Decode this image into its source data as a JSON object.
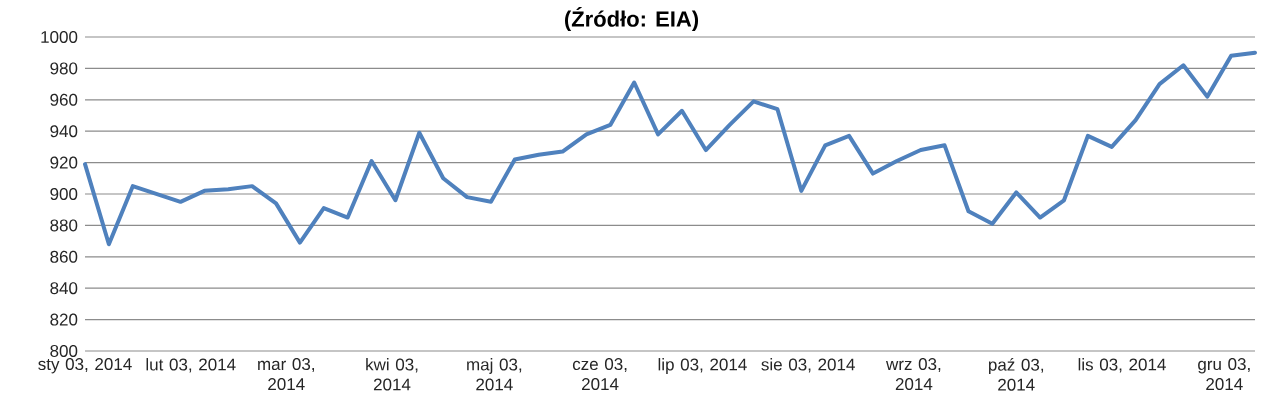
{
  "chart_data": {
    "type": "line",
    "title": "(Źródło: EIA)",
    "x": [
      "2014-01-03",
      "2014-01-10",
      "2014-01-17",
      "2014-01-24",
      "2014-01-31",
      "2014-02-07",
      "2014-02-14",
      "2014-02-21",
      "2014-02-28",
      "2014-03-07",
      "2014-03-14",
      "2014-03-21",
      "2014-03-28",
      "2014-04-04",
      "2014-04-11",
      "2014-04-18",
      "2014-04-25",
      "2014-05-02",
      "2014-05-09",
      "2014-05-16",
      "2014-05-23",
      "2014-05-30",
      "2014-06-06",
      "2014-06-13",
      "2014-06-20",
      "2014-06-27",
      "2014-07-04",
      "2014-07-11",
      "2014-07-18",
      "2014-07-25",
      "2014-08-01",
      "2014-08-08",
      "2014-08-15",
      "2014-08-22",
      "2014-08-29",
      "2014-09-05",
      "2014-09-12",
      "2014-09-19",
      "2014-09-26",
      "2014-10-03",
      "2014-10-10",
      "2014-10-17",
      "2014-10-24",
      "2014-10-31",
      "2014-11-07",
      "2014-11-14",
      "2014-11-21",
      "2014-11-28",
      "2014-12-05",
      "2014-12-12"
    ],
    "series": [
      {
        "color": "#4f81bd",
        "values": [
          919,
          868,
          905,
          900,
          895,
          902,
          903,
          905,
          894,
          869,
          891,
          885,
          921,
          896,
          939,
          910,
          898,
          895,
          922,
          925,
          927,
          938,
          944,
          971,
          938,
          953,
          928,
          944,
          959,
          954,
          902,
          931,
          937,
          913,
          921,
          928,
          931,
          889,
          881,
          901,
          885,
          896,
          937,
          930,
          947,
          970,
          982,
          962,
          988,
          990
        ]
      }
    ],
    "xlim": [
      "2014-01-03",
      "2014-12-12"
    ],
    "xticks": [
      {
        "value": "2014-01-03",
        "label": "sty 03, 2014"
      },
      {
        "value": "2014-02-03",
        "label": "lut 03, 2014"
      },
      {
        "value": "2014-03-03",
        "label": "mar 03, 2014"
      },
      {
        "value": "2014-04-03",
        "label": "kwi 03, 2014"
      },
      {
        "value": "2014-05-03",
        "label": "maj 03, 2014"
      },
      {
        "value": "2014-06-03",
        "label": "cze 03, 2014"
      },
      {
        "value": "2014-07-03",
        "label": "lip 03, 2014"
      },
      {
        "value": "2014-08-03",
        "label": "sie 03, 2014"
      },
      {
        "value": "2014-09-03",
        "label": "wrz 03, 2014"
      },
      {
        "value": "2014-10-03",
        "label": "paź 03, 2014"
      },
      {
        "value": "2014-11-03",
        "label": "lis 03, 2014"
      },
      {
        "value": "2014-12-03",
        "label": "gru 03, 2014"
      }
    ],
    "ylim": [
      800,
      1000
    ],
    "yticks": [
      800,
      820,
      840,
      860,
      880,
      900,
      920,
      940,
      960,
      980,
      1000
    ],
    "grid": "y",
    "legend": false,
    "marker": "none",
    "line_style": "solid"
  }
}
